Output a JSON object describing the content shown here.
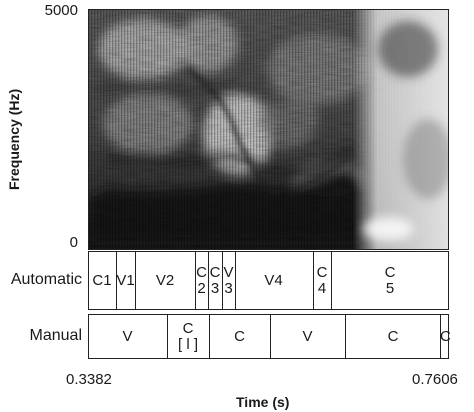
{
  "chart_data": [
    {
      "type": "heatmap",
      "title": "",
      "ylabel": "Frequency (Hz)",
      "yticks": [
        "5000",
        "0"
      ],
      "ylim": [
        0,
        5000
      ],
      "xlim": [
        0.3382,
        0.7606
      ],
      "xlabel": "Time (s)",
      "xticks": [
        "0.3382",
        "0.7606"
      ],
      "colormap": "grayscale",
      "colors": {
        "high_energy": "#0a0a0a",
        "low_energy": "#f4f4f4"
      }
    },
    {
      "type": "table",
      "tiers": [
        {
          "name": "Automatic",
          "intervals": [
            {
              "label": "C1",
              "start": 0.3382,
              "end": 0.3708
            },
            {
              "label": "V1",
              "start": 0.3708,
              "end": 0.3927
            },
            {
              "label": "V2",
              "start": 0.3927,
              "end": 0.4629
            },
            {
              "label": "C\n2",
              "start": 0.4629,
              "end": 0.4785
            },
            {
              "label": "C\n3",
              "start": 0.4785,
              "end": 0.4952
            },
            {
              "label": "V\n3",
              "start": 0.4952,
              "end": 0.5107
            },
            {
              "label": "V4",
              "start": 0.5107,
              "end": 0.6009
            },
            {
              "label": "C\n4",
              "start": 0.6009,
              "end": 0.6221
            },
            {
              "label": "C\n5",
              "start": 0.6221,
              "end": 0.7606
            }
          ]
        },
        {
          "name": "Manual",
          "intervals": [
            {
              "label": "V",
              "start": 0.3382,
              "end": 0.4311
            },
            {
              "label": "C\n[ l ]",
              "start": 0.4311,
              "end": 0.4797
            },
            {
              "label": "C",
              "start": 0.4797,
              "end": 0.5509
            },
            {
              "label": "V",
              "start": 0.5509,
              "end": 0.6387
            },
            {
              "label": "C",
              "start": 0.6387,
              "end": 0.7505
            },
            {
              "label": "C",
              "start": 0.7505,
              "end": 0.7606
            }
          ]
        }
      ]
    }
  ]
}
